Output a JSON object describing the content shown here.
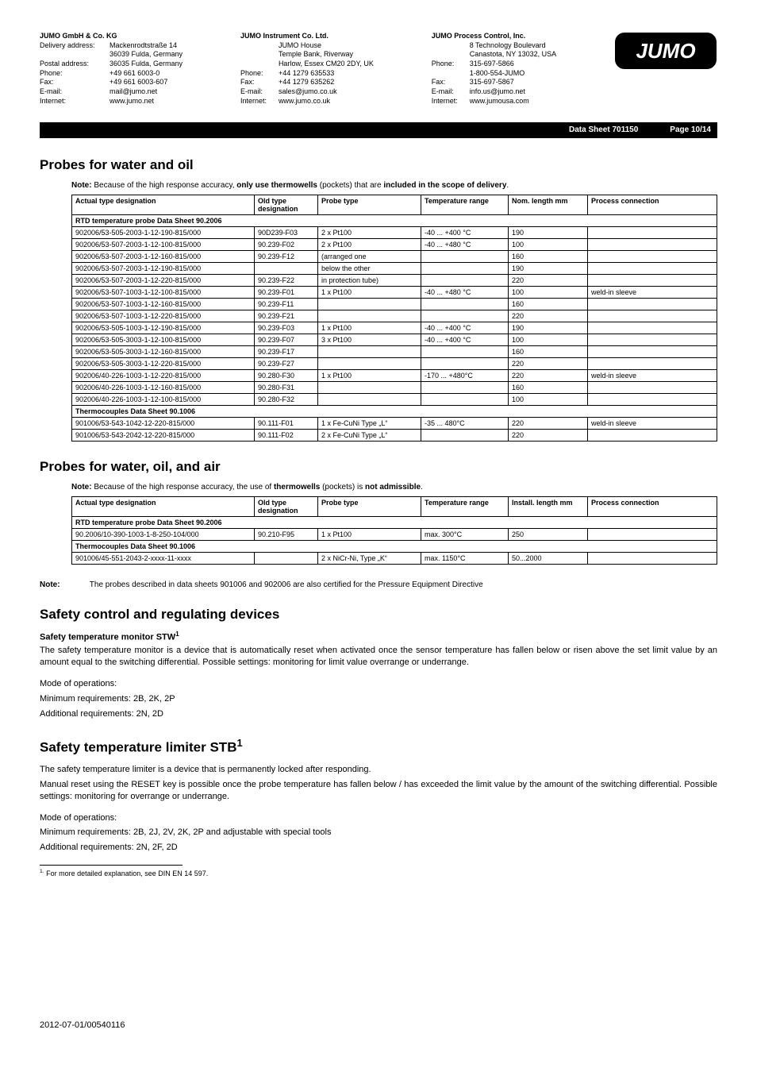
{
  "companies": {
    "de": {
      "name": "JUMO GmbH & Co. KG",
      "lines": [
        [
          "Delivery address:",
          "Mackenrodtstraße 14"
        ],
        [
          "",
          "36039 Fulda, Germany"
        ],
        [
          "Postal address:",
          "36035 Fulda, Germany"
        ],
        [
          "Phone:",
          "+49 661 6003-0"
        ],
        [
          "Fax:",
          "+49 661 6003-607"
        ],
        [
          "E-mail:",
          "mail@jumo.net"
        ],
        [
          "Internet:",
          "www.jumo.net"
        ]
      ]
    },
    "uk": {
      "name": "JUMO Instrument Co. Ltd.",
      "lines": [
        [
          "",
          "JUMO House"
        ],
        [
          "",
          "Temple Bank, Riverway"
        ],
        [
          "",
          "Harlow, Essex CM20 2DY, UK"
        ],
        [
          "Phone:",
          "+44 1279 635533"
        ],
        [
          "Fax:",
          "+44 1279 635262"
        ],
        [
          "E-mail:",
          "sales@jumo.co.uk"
        ],
        [
          "Internet:",
          "www.jumo.co.uk"
        ]
      ]
    },
    "us": {
      "name": "JUMO Process Control, Inc.",
      "lines": [
        [
          "",
          "8 Technology Boulevard"
        ],
        [
          "",
          "Canastota, NY 13032, USA"
        ],
        [
          "Phone:",
          "315-697-5866"
        ],
        [
          "",
          "1-800-554-JUMO"
        ],
        [
          "Fax:",
          "315-697-5867"
        ],
        [
          "E-mail:",
          "info.us@jumo.net"
        ],
        [
          "Internet:",
          "www.jumousa.com"
        ]
      ]
    }
  },
  "bar": {
    "datasheet": "Data Sheet 701150",
    "page": "Page 10/14"
  },
  "sec1": {
    "title": "Probes for water and oil",
    "note_prefix": "Note:",
    "note": " Because of the high response accuracy, ",
    "note_b1": "only use thermowells",
    "note_mid": " (pockets) that are ",
    "note_b2": "included in the scope of delivery",
    "note_end": ".",
    "headers": [
      "Actual type designation",
      "Old type designation",
      "Probe type",
      "Temperature range",
      "Nom. length mm",
      "Process connection"
    ],
    "group1": "RTD temperature probe Data Sheet 90.2006",
    "rows1": [
      [
        "902006/53-505-2003-1-12-190-815/000",
        "90D239-F03",
        "2 x Pt100",
        "-40 ... +400 °C",
        "190",
        ""
      ],
      [
        "902006/53-507-2003-1-12-100-815/000",
        "90.239-F02",
        "2 x Pt100",
        "-40 ... +480 °C",
        "100",
        ""
      ],
      [
        "902006/53-507-2003-1-12-160-815/000",
        "90.239-F12",
        "(arranged one",
        "",
        "160",
        ""
      ],
      [
        "902006/53-507-2003-1-12-190-815/000",
        "",
        "below the other",
        "",
        "190",
        ""
      ],
      [
        "902006/53-507-2003-1-12-220-815/000",
        "90.239-F22",
        "in protection tube)",
        "",
        "220",
        ""
      ],
      [
        "902006/53-507-1003-1-12-100-815/000",
        "90.239-F01",
        "1 x Pt100",
        "-40 ... +480 °C",
        "100",
        "weld-in sleeve"
      ],
      [
        "902006/53-507-1003-1-12-160-815/000",
        "90.239-F11",
        "",
        "",
        "160",
        ""
      ],
      [
        "902006/53-507-1003-1-12-220-815/000",
        "90.239-F21",
        "",
        "",
        "220",
        ""
      ],
      [
        "902006/53-505-1003-1-12-190-815/000",
        "90.239-F03",
        "1 x Pt100",
        "-40 ... +400 °C",
        "190",
        ""
      ],
      [
        "902006/53-505-3003-1-12-100-815/000",
        "90.239-F07",
        "3 x Pt100",
        "-40 ... +400 °C",
        "100",
        ""
      ],
      [
        "902006/53-505-3003-1-12-160-815/000",
        "90.239-F17",
        "",
        "",
        "160",
        ""
      ],
      [
        "902006/53-505-3003-1-12-220-815/000",
        "90.239-F27",
        "",
        "",
        "220",
        ""
      ],
      [
        "902006/40-226-1003-1-12-220-815/000",
        "90.280-F30",
        "1 x Pt100",
        "-170 ... +480°C",
        "220",
        "weld-in sleeve"
      ],
      [
        "902006/40-226-1003-1-12-160-815/000",
        "90.280-F31",
        "",
        "",
        "160",
        ""
      ],
      [
        "902006/40-226-1003-1-12-100-815/000",
        "90.280-F32",
        "",
        "",
        "100",
        ""
      ]
    ],
    "group2": "Thermocouples Data Sheet  90.1006",
    "rows2": [
      [
        "901006/53-543-1042-12-220-815/000",
        "90.111-F01",
        "1 x Fe-CuNi Type „L“",
        "-35 ... 480°C",
        "220",
        "weld-in sleeve"
      ],
      [
        "901006/53-543-2042-12-220-815/000",
        "90.111-F02",
        "2 x Fe-CuNi Type „L“",
        "",
        "220",
        ""
      ]
    ]
  },
  "sec2": {
    "title": "Probes for water, oil, and air",
    "note_prefix": "Note:",
    "note": " Because of the high response accuracy, the use of ",
    "note_b1": "thermowells",
    "note_mid": " (pockets) is ",
    "note_b2": "not admissible",
    "note_end": ".",
    "headers": [
      "Actual type designation",
      "Old type designation",
      "Probe type",
      "Temperature range",
      "Install. length mm",
      "Process connection"
    ],
    "group1": "RTD temperature probe Data Sheet 90.2006",
    "row1": [
      "90.2006/10-390-1003-1-8-250-104/000",
      "90.210-F95",
      "1 x Pt100",
      "max. 300°C",
      "250",
      ""
    ],
    "group2": "Thermocouples Data Sheet  90.1006",
    "row2": [
      "901006/45-551-2043-2-xxxx-11-xxxx",
      "",
      "2 x NiCr-Ni, Type „K“",
      "max. 1150°C",
      "50...2000",
      ""
    ]
  },
  "note_block": {
    "label": "Note:",
    "text": "The probes described in data sheets 901006 and 902006 are also certified for the Pressure Equipment Directive"
  },
  "sec3": {
    "title": "Safety control and regulating devices",
    "stw_head": "Safety temperature monitor STW",
    "stw_p": "The safety temperature monitor is a device that is automatically reset when activated once the sensor temperature has fallen below or risen above the set limit value by an amount equal to the switching differential. Possible settings: monitoring for limit value overrange or underrange.",
    "mode": "Mode of operations:",
    "stw_min": "Minimum requirements: 2B, 2K, 2P",
    "stw_add": "Additional requirements: 2N, 2D"
  },
  "sec4": {
    "title": "Safety temperature limiter STB",
    "p1": "The safety temperature limiter is a device that is permanently locked after responding.",
    "p2": "Manual reset using the RESET key is possible once the probe temperature has fallen below / has exceeded the limit value by the amount of the switching differential. Possible settings: monitoring for overrange or underrange.",
    "mode": "Mode of operations:",
    "min": "Minimum requirements: 2B, 2J, 2V, 2K, 2P and adjustable with special tools",
    "add": "Additional requirements: 2N, 2F, 2D"
  },
  "footnote": "For more detailed explanation, see DIN EN 14 597.",
  "footer": "2012-07-01/00540116"
}
